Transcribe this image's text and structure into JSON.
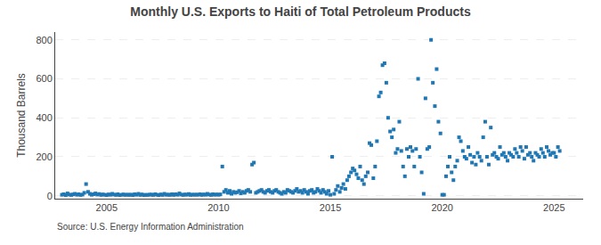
{
  "chart_data": {
    "type": "scatter",
    "title": "Monthly U.S. Exports to Haiti of Total Petroleum Products",
    "ylabel": "Thousand Barrels",
    "annotations": [
      "Source: U.S. Energy Information Administration"
    ],
    "marker": "square",
    "grid": "y",
    "xlim": [
      2002.7,
      2026.3
    ],
    "xticks": [
      2005,
      2010,
      2015,
      2020,
      2025
    ],
    "ylim": [
      -15,
      840
    ],
    "yticks": [
      0,
      200,
      400,
      600,
      800
    ],
    "x": [
      2003.0,
      2003.08,
      2003.17,
      2003.25,
      2003.33,
      2003.42,
      2003.5,
      2003.58,
      2003.67,
      2003.75,
      2003.83,
      2003.92,
      2004.0,
      2004.08,
      2004.17,
      2004.25,
      2004.33,
      2004.42,
      2004.5,
      2004.58,
      2004.67,
      2004.75,
      2004.83,
      2004.92,
      2005.0,
      2005.08,
      2005.17,
      2005.25,
      2005.33,
      2005.42,
      2005.5,
      2005.58,
      2005.67,
      2005.75,
      2005.83,
      2005.92,
      2006.0,
      2006.08,
      2006.17,
      2006.25,
      2006.33,
      2006.42,
      2006.5,
      2006.58,
      2006.67,
      2006.75,
      2006.83,
      2006.92,
      2007.0,
      2007.08,
      2007.17,
      2007.25,
      2007.33,
      2007.42,
      2007.5,
      2007.58,
      2007.67,
      2007.75,
      2007.83,
      2007.92,
      2008.0,
      2008.08,
      2008.17,
      2008.25,
      2008.33,
      2008.42,
      2008.5,
      2008.58,
      2008.67,
      2008.75,
      2008.83,
      2008.92,
      2009.0,
      2009.08,
      2009.17,
      2009.25,
      2009.33,
      2009.42,
      2009.5,
      2009.58,
      2009.67,
      2009.75,
      2009.83,
      2009.92,
      2010.0,
      2010.08,
      2010.17,
      2010.25,
      2010.33,
      2010.42,
      2010.5,
      2010.58,
      2010.67,
      2010.75,
      2010.83,
      2010.92,
      2011.0,
      2011.08,
      2011.17,
      2011.25,
      2011.33,
      2011.42,
      2011.5,
      2011.58,
      2011.67,
      2011.75,
      2011.83,
      2011.92,
      2012.0,
      2012.08,
      2012.17,
      2012.25,
      2012.33,
      2012.42,
      2012.5,
      2012.58,
      2012.67,
      2012.75,
      2012.83,
      2012.92,
      2013.0,
      2013.08,
      2013.17,
      2013.25,
      2013.33,
      2013.42,
      2013.5,
      2013.58,
      2013.67,
      2013.75,
      2013.83,
      2013.92,
      2014.0,
      2014.08,
      2014.17,
      2014.25,
      2014.33,
      2014.42,
      2014.5,
      2014.58,
      2014.67,
      2014.75,
      2014.83,
      2014.92,
      2015.0,
      2015.08,
      2015.17,
      2015.25,
      2015.33,
      2015.42,
      2015.5,
      2015.58,
      2015.67,
      2015.75,
      2015.83,
      2015.92,
      2016.0,
      2016.08,
      2016.17,
      2016.25,
      2016.33,
      2016.42,
      2016.5,
      2016.58,
      2016.67,
      2016.75,
      2016.83,
      2016.92,
      2017.0,
      2017.08,
      2017.17,
      2017.25,
      2017.33,
      2017.42,
      2017.5,
      2017.58,
      2017.67,
      2017.75,
      2017.83,
      2017.92,
      2018.0,
      2018.08,
      2018.17,
      2018.25,
      2018.33,
      2018.42,
      2018.5,
      2018.58,
      2018.67,
      2018.75,
      2018.83,
      2018.92,
      2019.0,
      2019.08,
      2019.17,
      2019.25,
      2019.33,
      2019.42,
      2019.5,
      2019.58,
      2019.67,
      2019.75,
      2019.83,
      2019.92,
      2020.0,
      2020.08,
      2020.17,
      2020.25,
      2020.33,
      2020.42,
      2020.5,
      2020.58,
      2020.67,
      2020.75,
      2020.83,
      2020.92,
      2021.0,
      2021.08,
      2021.17,
      2021.25,
      2021.33,
      2021.42,
      2021.5,
      2021.58,
      2021.67,
      2021.75,
      2021.83,
      2021.92,
      2022.0,
      2022.08,
      2022.17,
      2022.25,
      2022.33,
      2022.42,
      2022.5,
      2022.58,
      2022.67,
      2022.75,
      2022.83,
      2022.92,
      2023.0,
      2023.08,
      2023.17,
      2023.25,
      2023.33,
      2023.42,
      2023.5,
      2023.58,
      2023.67,
      2023.75,
      2023.83,
      2023.92,
      2024.0,
      2024.08,
      2024.17,
      2024.25,
      2024.33,
      2024.42,
      2024.5,
      2024.58,
      2024.67,
      2024.75,
      2024.83,
      2024.92,
      2025.0,
      2025.08,
      2025.17,
      2025.25
    ],
    "values": [
      5,
      8,
      3,
      12,
      6,
      4,
      7,
      10,
      5,
      8,
      4,
      6,
      15,
      60,
      20,
      10,
      5,
      8,
      12,
      6,
      9,
      4,
      7,
      5,
      3,
      7,
      5,
      10,
      6,
      4,
      8,
      3,
      5,
      7,
      4,
      6,
      4,
      6,
      3,
      8,
      5,
      10,
      4,
      7,
      3,
      5,
      4,
      6,
      6,
      4,
      8,
      5,
      3,
      7,
      4,
      10,
      5,
      6,
      4,
      8,
      4,
      8,
      5,
      12,
      6,
      4,
      7,
      5,
      9,
      4,
      6,
      5,
      6,
      5,
      8,
      4,
      7,
      5,
      10,
      6,
      4,
      8,
      5,
      7,
      5,
      7,
      150,
      20,
      30,
      15,
      25,
      10,
      20,
      15,
      18,
      25,
      12,
      20,
      15,
      25,
      30,
      20,
      160,
      170,
      15,
      20,
      25,
      30,
      20,
      15,
      25,
      30,
      20,
      15,
      25,
      30,
      20,
      15,
      10,
      20,
      15,
      30,
      25,
      20,
      15,
      25,
      35,
      20,
      25,
      15,
      30,
      20,
      10,
      25,
      30,
      15,
      20,
      35,
      25,
      15,
      30,
      20,
      10,
      25,
      5,
      200,
      10,
      30,
      50,
      20,
      40,
      60,
      35,
      80,
      100,
      120,
      140,
      130,
      110,
      90,
      150,
      80,
      60,
      100,
      120,
      270,
      260,
      90,
      150,
      280,
      510,
      530,
      670,
      680,
      580,
      400,
      330,
      300,
      340,
      220,
      240,
      380,
      230,
      150,
      100,
      240,
      200,
      250,
      230,
      150,
      240,
      600,
      200,
      120,
      10,
      500,
      240,
      250,
      800,
      580,
      460,
      650,
      380,
      320,
      5,
      5,
      100,
      150,
      200,
      120,
      80,
      150,
      180,
      300,
      280,
      230,
      200,
      190,
      250,
      210,
      170,
      200,
      160,
      220,
      200,
      180,
      300,
      380,
      200,
      160,
      350,
      210,
      220,
      200,
      190,
      250,
      210,
      220,
      200,
      180,
      220,
      210,
      200,
      240,
      220,
      200,
      250,
      230,
      190,
      250,
      210,
      220,
      200,
      180,
      220,
      210,
      200,
      240,
      220,
      200,
      250,
      230,
      210,
      220,
      220,
      200,
      250,
      230
    ]
  }
}
